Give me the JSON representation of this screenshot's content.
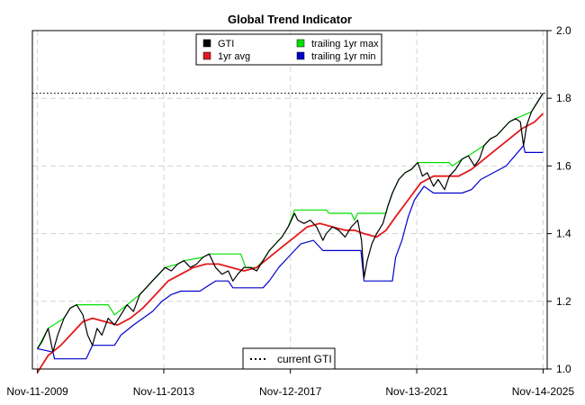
{
  "chart_data": {
    "type": "line",
    "title": "Global Trend Indicator",
    "xlabel": "",
    "ylabel": "",
    "x_tick_labels": [
      "Nov-11-2009",
      "Nov-11-2013",
      "Nov-12-2017",
      "Nov-13-2021",
      "Nov-14-2025"
    ],
    "x_tick_years": [
      2009.86,
      2013.86,
      2017.87,
      2021.87,
      2025.87
    ],
    "xlim": [
      2009.7,
      2026.0
    ],
    "y_ticks": [
      "1.0",
      "1.2",
      "1.4",
      "1.6",
      "1.8",
      "2.0"
    ],
    "y_tick_values": [
      1.0,
      1.2,
      1.4,
      1.6,
      1.8,
      2.0
    ],
    "ylim": [
      1.0,
      2.0
    ],
    "y_axis_side": "right",
    "grid": true,
    "current_gti": 1.815,
    "legend_top": {
      "placement": "top-center",
      "entries": [
        {
          "label": "GTI",
          "color": "#000000"
        },
        {
          "label": "1yr avg",
          "color": "#e31a1c"
        },
        {
          "label": "trailing 1yr max",
          "color": "#00e000"
        },
        {
          "label": "trailing 1yr min",
          "color": "#0000cc"
        }
      ]
    },
    "legend_bottom": {
      "placement": "bottom-center",
      "label": "current GTI"
    },
    "series": [
      {
        "name": "GTI",
        "color": "#000000",
        "points": [
          [
            2009.86,
            1.06
          ],
          [
            2010.0,
            1.08
          ],
          [
            2010.2,
            1.12
          ],
          [
            2010.35,
            1.05
          ],
          [
            2010.5,
            1.1
          ],
          [
            2010.7,
            1.15
          ],
          [
            2010.9,
            1.18
          ],
          [
            2011.1,
            1.19
          ],
          [
            2011.3,
            1.16
          ],
          [
            2011.45,
            1.1
          ],
          [
            2011.6,
            1.07
          ],
          [
            2011.75,
            1.12
          ],
          [
            2011.9,
            1.1
          ],
          [
            2012.1,
            1.15
          ],
          [
            2012.3,
            1.13
          ],
          [
            2012.5,
            1.16
          ],
          [
            2012.7,
            1.19
          ],
          [
            2012.9,
            1.17
          ],
          [
            2013.1,
            1.22
          ],
          [
            2013.3,
            1.24
          ],
          [
            2013.5,
            1.26
          ],
          [
            2013.7,
            1.28
          ],
          [
            2013.9,
            1.3
          ],
          [
            2014.1,
            1.29
          ],
          [
            2014.3,
            1.31
          ],
          [
            2014.5,
            1.32
          ],
          [
            2014.7,
            1.3
          ],
          [
            2014.9,
            1.31
          ],
          [
            2015.1,
            1.33
          ],
          [
            2015.3,
            1.34
          ],
          [
            2015.5,
            1.3
          ],
          [
            2015.7,
            1.28
          ],
          [
            2015.9,
            1.29
          ],
          [
            2016.05,
            1.26
          ],
          [
            2016.2,
            1.28
          ],
          [
            2016.4,
            1.3
          ],
          [
            2016.6,
            1.3
          ],
          [
            2016.8,
            1.29
          ],
          [
            2017.0,
            1.32
          ],
          [
            2017.2,
            1.35
          ],
          [
            2017.4,
            1.37
          ],
          [
            2017.6,
            1.39
          ],
          [
            2017.8,
            1.42
          ],
          [
            2018.0,
            1.46
          ],
          [
            2018.1,
            1.44
          ],
          [
            2018.3,
            1.43
          ],
          [
            2018.5,
            1.44
          ],
          [
            2018.7,
            1.42
          ],
          [
            2018.9,
            1.38
          ],
          [
            2019.0,
            1.4
          ],
          [
            2019.2,
            1.42
          ],
          [
            2019.4,
            1.41
          ],
          [
            2019.6,
            1.39
          ],
          [
            2019.8,
            1.42
          ],
          [
            2020.0,
            1.44
          ],
          [
            2020.12,
            1.38
          ],
          [
            2020.2,
            1.27
          ],
          [
            2020.3,
            1.32
          ],
          [
            2020.45,
            1.37
          ],
          [
            2020.6,
            1.4
          ],
          [
            2020.8,
            1.43
          ],
          [
            2020.95,
            1.48
          ],
          [
            2021.1,
            1.52
          ],
          [
            2021.3,
            1.56
          ],
          [
            2021.5,
            1.58
          ],
          [
            2021.7,
            1.59
          ],
          [
            2021.9,
            1.61
          ],
          [
            2022.05,
            1.57
          ],
          [
            2022.2,
            1.58
          ],
          [
            2022.4,
            1.54
          ],
          [
            2022.55,
            1.56
          ],
          [
            2022.75,
            1.53
          ],
          [
            2022.9,
            1.57
          ],
          [
            2023.1,
            1.59
          ],
          [
            2023.3,
            1.62
          ],
          [
            2023.5,
            1.63
          ],
          [
            2023.7,
            1.6
          ],
          [
            2023.85,
            1.62
          ],
          [
            2024.0,
            1.66
          ],
          [
            2024.2,
            1.68
          ],
          [
            2024.4,
            1.69
          ],
          [
            2024.6,
            1.71
          ],
          [
            2024.8,
            1.73
          ],
          [
            2025.0,
            1.74
          ],
          [
            2025.15,
            1.73
          ],
          [
            2025.25,
            1.66
          ],
          [
            2025.35,
            1.72
          ],
          [
            2025.5,
            1.76
          ],
          [
            2025.7,
            1.79
          ],
          [
            2025.87,
            1.815
          ]
        ]
      },
      {
        "name": "1yr avg",
        "color": "#e31a1c",
        "points": [
          [
            2009.86,
            0.99
          ],
          [
            2010.2,
            1.04
          ],
          [
            2010.6,
            1.07
          ],
          [
            2011.0,
            1.11
          ],
          [
            2011.3,
            1.14
          ],
          [
            2011.6,
            1.15
          ],
          [
            2012.0,
            1.14
          ],
          [
            2012.4,
            1.13
          ],
          [
            2012.8,
            1.15
          ],
          [
            2013.2,
            1.18
          ],
          [
            2013.6,
            1.22
          ],
          [
            2014.0,
            1.26
          ],
          [
            2014.4,
            1.28
          ],
          [
            2014.8,
            1.3
          ],
          [
            2015.2,
            1.31
          ],
          [
            2015.6,
            1.31
          ],
          [
            2016.0,
            1.3
          ],
          [
            2016.4,
            1.29
          ],
          [
            2016.8,
            1.3
          ],
          [
            2017.2,
            1.33
          ],
          [
            2017.6,
            1.36
          ],
          [
            2018.0,
            1.39
          ],
          [
            2018.4,
            1.42
          ],
          [
            2018.8,
            1.43
          ],
          [
            2019.2,
            1.42
          ],
          [
            2019.6,
            1.41
          ],
          [
            2019.9,
            1.41
          ],
          [
            2020.2,
            1.4
          ],
          [
            2020.6,
            1.39
          ],
          [
            2020.9,
            1.41
          ],
          [
            2021.2,
            1.45
          ],
          [
            2021.6,
            1.5
          ],
          [
            2022.0,
            1.55
          ],
          [
            2022.4,
            1.57
          ],
          [
            2022.8,
            1.57
          ],
          [
            2023.2,
            1.57
          ],
          [
            2023.6,
            1.59
          ],
          [
            2024.0,
            1.62
          ],
          [
            2024.4,
            1.65
          ],
          [
            2024.8,
            1.68
          ],
          [
            2025.2,
            1.71
          ],
          [
            2025.6,
            1.73
          ],
          [
            2025.87,
            1.755
          ]
        ]
      },
      {
        "name": "trailing 1yr max",
        "color": "#00e000",
        "points": [
          [
            2009.86,
            1.06
          ],
          [
            2010.2,
            1.12
          ],
          [
            2010.7,
            1.15
          ],
          [
            2010.9,
            1.18
          ],
          [
            2011.1,
            1.19
          ],
          [
            2012.1,
            1.19
          ],
          [
            2012.3,
            1.16
          ],
          [
            2012.7,
            1.19
          ],
          [
            2013.1,
            1.22
          ],
          [
            2013.3,
            1.24
          ],
          [
            2013.5,
            1.26
          ],
          [
            2013.7,
            1.28
          ],
          [
            2013.9,
            1.3
          ],
          [
            2014.3,
            1.31
          ],
          [
            2014.5,
            1.32
          ],
          [
            2015.1,
            1.33
          ],
          [
            2015.3,
            1.34
          ],
          [
            2016.3,
            1.34
          ],
          [
            2016.45,
            1.3
          ],
          [
            2016.8,
            1.3
          ],
          [
            2017.0,
            1.32
          ],
          [
            2017.2,
            1.35
          ],
          [
            2017.4,
            1.37
          ],
          [
            2017.6,
            1.39
          ],
          [
            2017.8,
            1.42
          ],
          [
            2018.0,
            1.47
          ],
          [
            2019.0,
            1.47
          ],
          [
            2019.1,
            1.46
          ],
          [
            2019.8,
            1.46
          ],
          [
            2019.9,
            1.44
          ],
          [
            2020.0,
            1.46
          ],
          [
            2020.9,
            1.46
          ],
          [
            2020.95,
            1.48
          ],
          [
            2021.1,
            1.52
          ],
          [
            2021.3,
            1.56
          ],
          [
            2021.5,
            1.58
          ],
          [
            2021.7,
            1.59
          ],
          [
            2021.9,
            1.61
          ],
          [
            2022.9,
            1.61
          ],
          [
            2023.0,
            1.6
          ],
          [
            2023.3,
            1.62
          ],
          [
            2023.5,
            1.63
          ],
          [
            2024.0,
            1.66
          ],
          [
            2024.2,
            1.68
          ],
          [
            2024.4,
            1.69
          ],
          [
            2024.6,
            1.71
          ],
          [
            2024.8,
            1.73
          ],
          [
            2025.0,
            1.74
          ],
          [
            2025.5,
            1.76
          ],
          [
            2025.7,
            1.79
          ],
          [
            2025.87,
            1.815
          ]
        ]
      },
      {
        "name": "trailing 1yr min",
        "color": "#0000cc",
        "points": [
          [
            2009.86,
            1.06
          ],
          [
            2010.35,
            1.05
          ],
          [
            2010.4,
            1.03
          ],
          [
            2011.4,
            1.03
          ],
          [
            2011.6,
            1.07
          ],
          [
            2012.3,
            1.07
          ],
          [
            2012.5,
            1.1
          ],
          [
            2012.9,
            1.13
          ],
          [
            2013.2,
            1.15
          ],
          [
            2013.5,
            1.17
          ],
          [
            2013.8,
            1.2
          ],
          [
            2014.1,
            1.22
          ],
          [
            2014.4,
            1.23
          ],
          [
            2015.0,
            1.23
          ],
          [
            2015.5,
            1.26
          ],
          [
            2015.9,
            1.26
          ],
          [
            2016.05,
            1.24
          ],
          [
            2017.0,
            1.24
          ],
          [
            2017.2,
            1.26
          ],
          [
            2017.5,
            1.3
          ],
          [
            2017.8,
            1.33
          ],
          [
            2018.2,
            1.37
          ],
          [
            2018.6,
            1.38
          ],
          [
            2018.9,
            1.35
          ],
          [
            2020.1,
            1.35
          ],
          [
            2020.2,
            1.26
          ],
          [
            2021.1,
            1.26
          ],
          [
            2021.2,
            1.33
          ],
          [
            2021.4,
            1.38
          ],
          [
            2021.6,
            1.45
          ],
          [
            2021.8,
            1.5
          ],
          [
            2022.1,
            1.54
          ],
          [
            2022.4,
            1.52
          ],
          [
            2023.3,
            1.52
          ],
          [
            2023.6,
            1.53
          ],
          [
            2023.9,
            1.56
          ],
          [
            2024.3,
            1.58
          ],
          [
            2024.7,
            1.6
          ],
          [
            2025.25,
            1.66
          ],
          [
            2025.3,
            1.64
          ],
          [
            2025.87,
            1.64
          ]
        ]
      }
    ]
  }
}
